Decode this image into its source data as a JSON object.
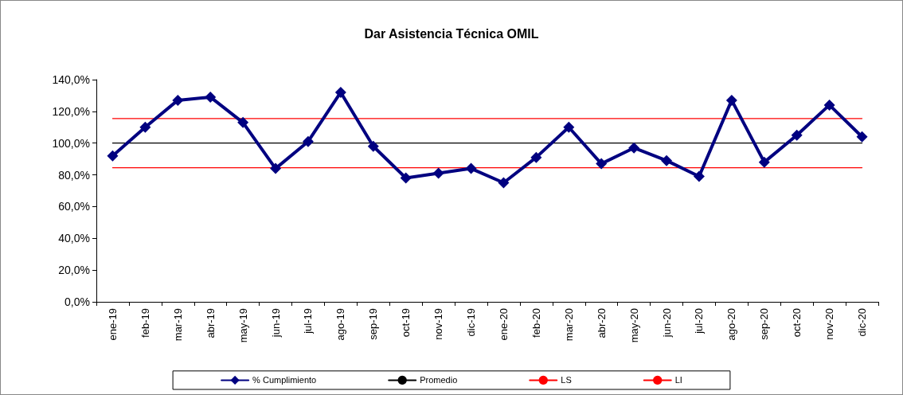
{
  "chart_data": {
    "type": "line",
    "title": "Dar Asistencia Técnica OMIL",
    "categories": [
      "ene-19",
      "feb-19",
      "mar-19",
      "abr-19",
      "may-19",
      "jun-19",
      "jul-19",
      "ago-19",
      "sep-19",
      "oct-19",
      "nov-19",
      "dic-19",
      "ene-20",
      "feb-20",
      "mar-20",
      "abr-20",
      "may-20",
      "jun-20",
      "jul-20",
      "ago-20",
      "sep-20",
      "oct-20",
      "nov-20",
      "dic-20"
    ],
    "series": [
      {
        "name": "% Cumplimiento",
        "color": "#000080",
        "marker": "diamond",
        "values": [
          92,
          110,
          127,
          129,
          113,
          84,
          101,
          132,
          98,
          78,
          81,
          84,
          75,
          91,
          110,
          87,
          97,
          89,
          79,
          127,
          88,
          105,
          124,
          104
        ]
      },
      {
        "name": "Promedio",
        "color": "#000000",
        "marker": "none",
        "values": [
          100,
          100,
          100,
          100,
          100,
          100,
          100,
          100,
          100,
          100,
          100,
          100,
          100,
          100,
          100,
          100,
          100,
          100,
          100,
          100,
          100,
          100,
          100,
          100
        ]
      },
      {
        "name": "LS",
        "color": "#ff0000",
        "marker": "none",
        "values": [
          115.5,
          115.5,
          115.5,
          115.5,
          115.5,
          115.5,
          115.5,
          115.5,
          115.5,
          115.5,
          115.5,
          115.5,
          115.5,
          115.5,
          115.5,
          115.5,
          115.5,
          115.5,
          115.5,
          115.5,
          115.5,
          115.5,
          115.5,
          115.5
        ]
      },
      {
        "name": "LI",
        "color": "#ff0000",
        "marker": "none",
        "values": [
          84.5,
          84.5,
          84.5,
          84.5,
          84.5,
          84.5,
          84.5,
          84.5,
          84.5,
          84.5,
          84.5,
          84.5,
          84.5,
          84.5,
          84.5,
          84.5,
          84.5,
          84.5,
          84.5,
          84.5,
          84.5,
          84.5,
          84.5,
          84.5
        ]
      }
    ],
    "ylim": [
      0,
      140
    ],
    "yticks": [
      {
        "value": 0,
        "label": "0,0%"
      },
      {
        "value": 20,
        "label": "20,0%"
      },
      {
        "value": 40,
        "label": "40,0%"
      },
      {
        "value": 60,
        "label": "60,0%"
      },
      {
        "value": 80,
        "label": "80,0%"
      },
      {
        "value": 100,
        "label": "100,0%"
      },
      {
        "value": 120,
        "label": "120,0%"
      },
      {
        "value": 140,
        "label": "140,0%"
      }
    ],
    "grid": false,
    "legend": "bottom",
    "line_style": "solid"
  }
}
